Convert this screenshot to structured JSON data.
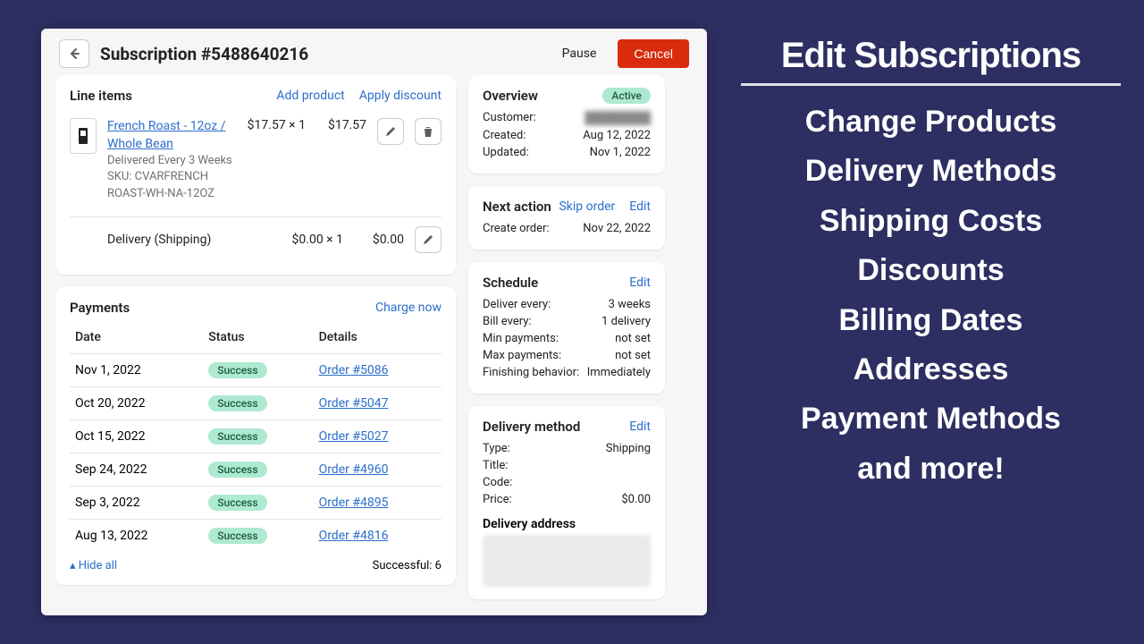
{
  "colors": {
    "bg": "#2d2e61",
    "link": "#2c6ecb",
    "danger": "#d82c0d",
    "success_bg": "#aee9d1"
  },
  "header": {
    "title": "Subscription #5488640216",
    "pause": "Pause",
    "cancel": "Cancel"
  },
  "line_items": {
    "title": "Line items",
    "add_product": "Add product",
    "apply_discount": "Apply discount",
    "item": {
      "name": "French Roast - 12oz / Whole Bean",
      "schedule": "Delivered Every 3 Weeks",
      "sku": "SKU: CVARFRENCH ROAST-WH-NA-12OZ",
      "unit": "$17.57 × 1",
      "total": "$17.57"
    },
    "delivery": {
      "label": "Delivery (Shipping)",
      "unit": "$0.00 × 1",
      "total": "$0.00"
    }
  },
  "payments": {
    "title": "Payments",
    "charge_now": "Charge now",
    "columns": {
      "date": "Date",
      "status": "Status",
      "details": "Details"
    },
    "rows": [
      {
        "date": "Nov 1, 2022",
        "status": "Success",
        "order": "Order #5086"
      },
      {
        "date": "Oct 20, 2022",
        "status": "Success",
        "order": "Order #5047"
      },
      {
        "date": "Oct 15, 2022",
        "status": "Success",
        "order": "Order #5027"
      },
      {
        "date": "Sep 24, 2022",
        "status": "Success",
        "order": "Order #4960"
      },
      {
        "date": "Sep 3, 2022",
        "status": "Success",
        "order": "Order #4895"
      },
      {
        "date": "Aug 13, 2022",
        "status": "Success",
        "order": "Order #4816"
      }
    ],
    "hide_all": "Hide all",
    "successful": "Successful: 6"
  },
  "overview": {
    "title": "Overview",
    "status": "Active",
    "customer_label": "Customer:",
    "created_label": "Created:",
    "created_val": "Aug 12, 2022",
    "updated_label": "Updated:",
    "updated_val": "Nov 1, 2022"
  },
  "next_action": {
    "title": "Next action",
    "skip": "Skip order",
    "edit": "Edit",
    "create_label": "Create order:",
    "create_val": "Nov 22, 2022"
  },
  "schedule": {
    "title": "Schedule",
    "edit": "Edit",
    "rows": [
      {
        "k": "Deliver every:",
        "v": "3 weeks"
      },
      {
        "k": "Bill every:",
        "v": "1 delivery"
      },
      {
        "k": "Min payments:",
        "v": "not set"
      },
      {
        "k": "Max payments:",
        "v": "not set"
      },
      {
        "k": "Finishing behavior:",
        "v": "Immediately"
      }
    ]
  },
  "delivery_method": {
    "title": "Delivery method",
    "edit": "Edit",
    "rows": [
      {
        "k": "Type:",
        "v": "Shipping"
      },
      {
        "k": "Title:",
        "v": ""
      },
      {
        "k": "Code:",
        "v": ""
      },
      {
        "k": "Price:",
        "v": "$0.00"
      }
    ],
    "address_title": "Delivery address"
  },
  "promo": {
    "heading": "Edit Subscriptions",
    "items": [
      "Change Products",
      "Delivery Methods",
      "Shipping Costs",
      "Discounts",
      "Billing Dates",
      "Addresses",
      "Payment Methods",
      "and more!"
    ]
  }
}
